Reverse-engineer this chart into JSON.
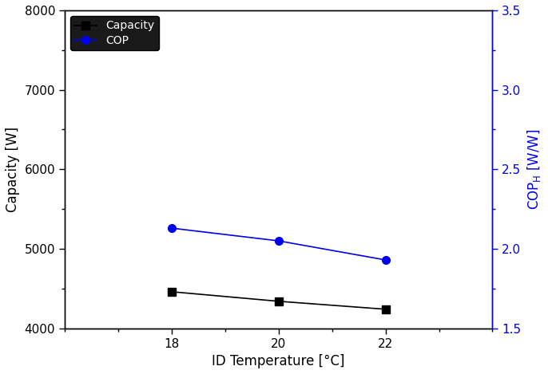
{
  "x": [
    18,
    20,
    22
  ],
  "capacity": [
    4460,
    4340,
    4240
  ],
  "cop": [
    2.13,
    2.05,
    1.93
  ],
  "capacity_color": "#000000",
  "cop_color": "#0000ee",
  "xlabel": "ID Temperature [°C]",
  "ylabel_left": "Capacity [W]",
  "ylabel_right": "COP_H [W/W]",
  "ylim_left": [
    4000,
    8000
  ],
  "ylim_right": [
    1.5,
    3.5
  ],
  "xlim": [
    16,
    24
  ],
  "xticks": [
    18,
    20,
    22
  ],
  "yticks_left": [
    4000,
    5000,
    6000,
    7000,
    8000
  ],
  "yticks_right": [
    1.5,
    2.0,
    2.5,
    3.0,
    3.5
  ],
  "legend_labels": [
    "Capacity",
    "COP"
  ],
  "capacity_marker": "s",
  "cop_marker": "o",
  "linewidth": 1.2,
  "markersize": 7,
  "fontsize_label": 12,
  "fontsize_tick": 11,
  "fontsize_legend": 10
}
